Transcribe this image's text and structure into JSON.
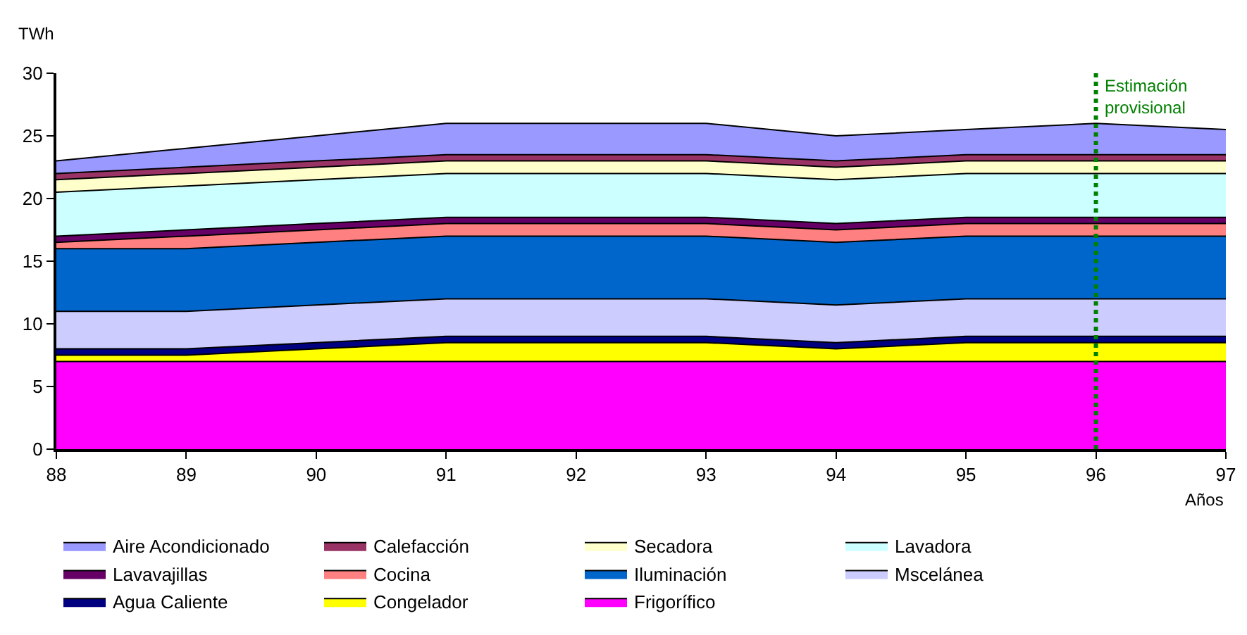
{
  "chart_data": {
    "type": "area",
    "stacked": true,
    "ylabel": "TWh",
    "xlabel": "Años",
    "x": [
      88,
      89,
      90,
      91,
      92,
      93,
      94,
      95,
      96,
      97
    ],
    "xlim": [
      88,
      97
    ],
    "xticks": [
      88,
      89,
      90,
      91,
      92,
      93,
      94,
      95,
      96,
      97
    ],
    "ylim": [
      0,
      30
    ],
    "yticks": [
      0,
      5,
      10,
      15,
      20,
      25,
      30
    ],
    "legend": "bottom",
    "series": [
      {
        "name": "Frigorífico",
        "color": "#ff00ff",
        "values": [
          7,
          7,
          7,
          7,
          7,
          7,
          7,
          7,
          7,
          7
        ]
      },
      {
        "name": "Congelador",
        "color": "#ffff00",
        "values": [
          0.5,
          0.5,
          1,
          1.5,
          1.5,
          1.5,
          1,
          1.5,
          1.5,
          1.5
        ]
      },
      {
        "name": "Agua Caliente",
        "color": "#000080",
        "values": [
          0.5,
          0.5,
          0.5,
          0.5,
          0.5,
          0.5,
          0.5,
          0.5,
          0.5,
          0.5
        ]
      },
      {
        "name": "Mscelánea",
        "color": "#ccccff",
        "values": [
          3,
          3,
          3,
          3,
          3,
          3,
          3,
          3,
          3,
          3
        ]
      },
      {
        "name": "Iluminación",
        "color": "#0066cc",
        "values": [
          5,
          5,
          5,
          5,
          5,
          5,
          5,
          5,
          5,
          5
        ]
      },
      {
        "name": "Cocina",
        "color": "#ff8080",
        "values": [
          0.5,
          1,
          1,
          1,
          1,
          1,
          1,
          1,
          1,
          1
        ]
      },
      {
        "name": "Lavavajillas",
        "color": "#660066",
        "values": [
          0.5,
          0.5,
          0.5,
          0.5,
          0.5,
          0.5,
          0.5,
          0.5,
          0.5,
          0.5
        ]
      },
      {
        "name": "Lavadora",
        "color": "#ccffff",
        "values": [
          3.5,
          3.5,
          3.5,
          3.5,
          3.5,
          3.5,
          3.5,
          3.5,
          3.5,
          3.5
        ]
      },
      {
        "name": "Secadora",
        "color": "#ffffcc",
        "values": [
          1,
          1,
          1,
          1,
          1,
          1,
          1,
          1,
          1,
          1
        ]
      },
      {
        "name": "Calefacción",
        "color": "#993366",
        "values": [
          0.5,
          0.5,
          0.5,
          0.5,
          0.5,
          0.5,
          0.5,
          0.5,
          0.5,
          0.5
        ]
      },
      {
        "name": "Aire Acondicionado",
        "color": "#9999ff",
        "values": [
          1,
          1.5,
          2,
          2.5,
          2.5,
          2.5,
          2,
          2,
          2.5,
          2
        ]
      }
    ],
    "ref_lines": [
      {
        "axis": "x",
        "value": 96,
        "label": "Estimación\nprovisional",
        "color": "#008000",
        "line_style": "dotted"
      }
    ]
  }
}
